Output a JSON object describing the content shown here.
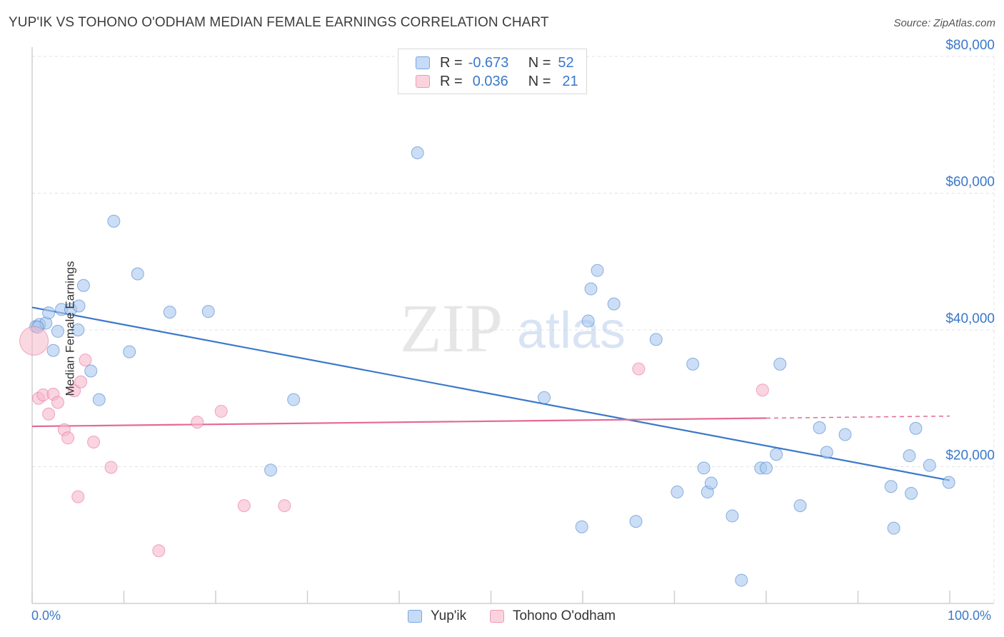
{
  "header": {
    "title": "YUP'IK VS TOHONO O'ODHAM MEDIAN FEMALE EARNINGS CORRELATION CHART",
    "source": "Source: ZipAtlas.com"
  },
  "watermark": {
    "zip": "ZIP",
    "atlas": "atlas"
  },
  "legend": {
    "rows": [
      {
        "r_label": "R =",
        "r_value": "-0.673",
        "n_label": "N =",
        "n_value": "52",
        "color": "#a9c8ef"
      },
      {
        "r_label": "R =",
        "r_value": "0.036",
        "n_label": "N =",
        "n_value": "21",
        "color": "#f6b8cb"
      }
    ]
  },
  "bottom_legend": {
    "series1": "Yup'ik",
    "series2": "Tohono O'odham"
  },
  "x_axis": {
    "min_label": "0.0%",
    "max_label": "100.0%"
  },
  "colors": {
    "blue": "#3a78c9",
    "blue_fill": "#a9c8ef",
    "pink": "#e46a92",
    "pink_fill": "#f6b8cb",
    "axis_text": "#3a78c9"
  },
  "chart_data": {
    "type": "scatter",
    "title": "YUP'IK VS TOHONO O'ODHAM MEDIAN FEMALE EARNINGS CORRELATION CHART",
    "xlabel": "",
    "ylabel": "Median Female Earnings",
    "xlim": [
      0,
      100
    ],
    "ylim": [
      0,
      80000
    ],
    "y_ticks": [
      {
        "value": 20000,
        "label": "$20,000"
      },
      {
        "value": 40000,
        "label": "$40,000"
      },
      {
        "value": 60000,
        "label": "$60,000"
      },
      {
        "value": 80000,
        "label": "$80,000"
      }
    ],
    "x_tick_values": [
      0,
      10,
      20,
      30,
      40,
      50,
      60,
      70,
      80,
      90,
      100
    ],
    "series": [
      {
        "name": "Yup'ik",
        "color": "#3a78c9",
        "fill": "#a9c8ef",
        "points": [
          [
            0.4,
            40500
          ],
          [
            0.8,
            40800
          ],
          [
            1.5,
            41000
          ],
          [
            1.8,
            42500
          ],
          [
            2.3,
            37000
          ],
          [
            2.8,
            39800
          ],
          [
            3.2,
            43000
          ],
          [
            4.2,
            43000
          ],
          [
            5.0,
            40000
          ],
          [
            5.1,
            43500
          ],
          [
            5.6,
            46500
          ],
          [
            6.4,
            34000
          ],
          [
            7.3,
            29800
          ],
          [
            8.9,
            55900
          ],
          [
            10.6,
            36800
          ],
          [
            11.5,
            48200
          ],
          [
            15.0,
            42600
          ],
          [
            19.2,
            42700
          ],
          [
            26.0,
            19500
          ],
          [
            28.5,
            29800
          ],
          [
            42.0,
            65900
          ],
          [
            55.8,
            30100
          ],
          [
            59.9,
            11200
          ],
          [
            60.6,
            41300
          ],
          [
            60.9,
            46000
          ],
          [
            61.6,
            48700
          ],
          [
            63.4,
            43800
          ],
          [
            65.8,
            12000
          ],
          [
            68.0,
            38600
          ],
          [
            70.3,
            16300
          ],
          [
            72.0,
            35000
          ],
          [
            73.2,
            19800
          ],
          [
            73.6,
            16300
          ],
          [
            74.0,
            17600
          ],
          [
            76.3,
            12800
          ],
          [
            77.3,
            3400
          ],
          [
            79.4,
            19800
          ],
          [
            80.0,
            19800
          ],
          [
            81.1,
            21800
          ],
          [
            81.5,
            35000
          ],
          [
            83.7,
            14300
          ],
          [
            85.8,
            25700
          ],
          [
            86.6,
            22100
          ],
          [
            88.6,
            24700
          ],
          [
            93.6,
            17100
          ],
          [
            93.9,
            11000
          ],
          [
            95.6,
            21600
          ],
          [
            95.8,
            16100
          ],
          [
            96.3,
            25600
          ],
          [
            97.8,
            20200
          ],
          [
            99.9,
            17700
          ],
          [
            0.6,
            40400
          ]
        ]
      },
      {
        "name": "Tohono O'odham",
        "color": "#e46a92",
        "fill": "#f6b8cb",
        "points": [
          [
            0.2,
            38400
          ],
          [
            0.7,
            30000
          ],
          [
            1.2,
            30500
          ],
          [
            1.8,
            27700
          ],
          [
            2.3,
            30600
          ],
          [
            2.8,
            29400
          ],
          [
            3.5,
            25400
          ],
          [
            3.9,
            24200
          ],
          [
            4.6,
            31100
          ],
          [
            5.0,
            15600
          ],
          [
            5.3,
            32400
          ],
          [
            5.8,
            35600
          ],
          [
            6.7,
            23600
          ],
          [
            8.6,
            19900
          ],
          [
            13.8,
            7700
          ],
          [
            18.0,
            26500
          ],
          [
            20.6,
            28100
          ],
          [
            23.1,
            14300
          ],
          [
            27.5,
            14300
          ],
          [
            66.1,
            34300
          ],
          [
            79.6,
            31200
          ]
        ]
      }
    ],
    "trend_lines": [
      {
        "series": "Yup'ik",
        "x": [
          0,
          100
        ],
        "y": [
          43300,
          18000
        ]
      },
      {
        "series": "Tohono O'odham",
        "x": [
          0,
          80
        ],
        "y": [
          25900,
          27100
        ],
        "dashed_extension_to": [
          100,
          27400
        ]
      }
    ]
  }
}
